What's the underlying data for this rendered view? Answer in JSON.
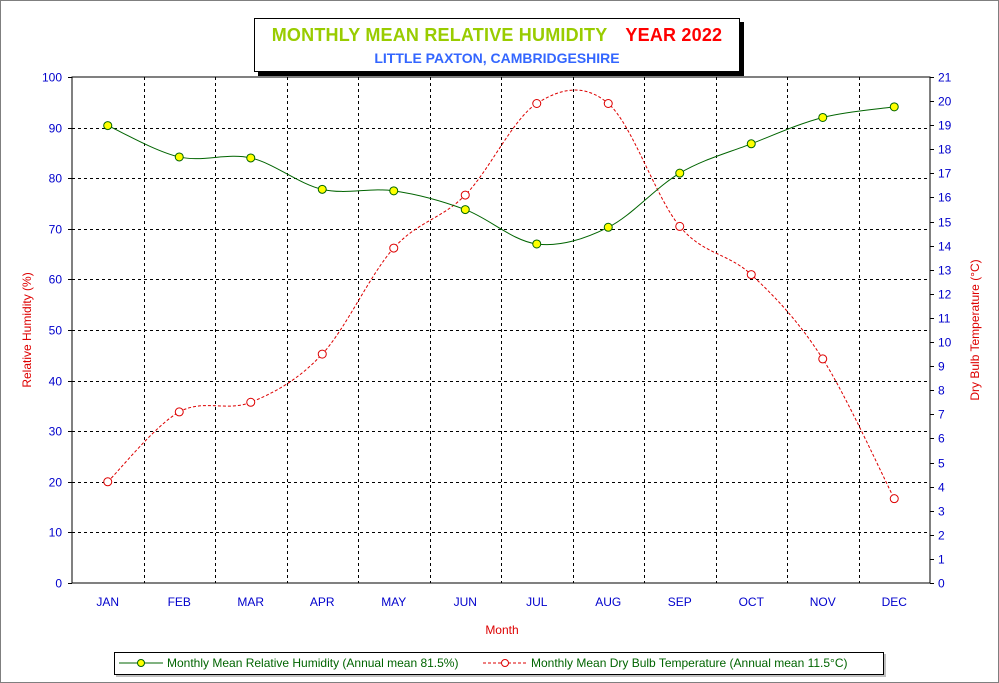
{
  "title": {
    "main": "MONTHLY MEAN RELATIVE HUMIDITY",
    "year": "YEAR 2022",
    "subtitle": "LITTLE PAXTON, CAMBRIDGESHIRE"
  },
  "colors": {
    "rh_line": "#006400",
    "rh_marker": "#ffff00",
    "temp_line": "#dd0000",
    "axis_text": "#0000cc",
    "axis_label": "#dd0000",
    "title_main": "#99cc00",
    "title_year": "#ff0000",
    "subtitle": "#3366ff"
  },
  "legend": {
    "rh": "Monthly Mean Relative Humidity (Annual mean 81.5%)",
    "temp": "Monthly Mean Dry Bulb Temperature (Annual mean 11.5°C)"
  },
  "chart_data": {
    "type": "line",
    "categories": [
      "JAN",
      "FEB",
      "MAR",
      "APR",
      "MAY",
      "JUN",
      "JUL",
      "AUG",
      "SEP",
      "OCT",
      "NOV",
      "DEC"
    ],
    "xlabel": "Month",
    "ylabel": "Relative Humidity (%)",
    "y2label": "Dry Bulb Temperature (°C)",
    "ylim": [
      0,
      100
    ],
    "y2lim": [
      0,
      21
    ],
    "yticks": [
      0,
      10,
      20,
      30,
      40,
      50,
      60,
      70,
      80,
      90,
      100
    ],
    "y2ticks": [
      0,
      1,
      2,
      3,
      4,
      5,
      6,
      7,
      8,
      9,
      10,
      11,
      12,
      13,
      14,
      15,
      16,
      17,
      18,
      19,
      20,
      21
    ],
    "grid": true,
    "legend_position": "bottom",
    "series": [
      {
        "name": "Monthly Mean Relative Humidity (Annual mean 81.5%)",
        "axis": "left",
        "values": [
          90.4,
          84.2,
          84.0,
          77.8,
          77.5,
          73.8,
          67.0,
          70.3,
          81.0,
          86.8,
          92.0,
          94.1
        ]
      },
      {
        "name": "Monthly Mean Dry Bulb Temperature (Annual mean 11.5°C)",
        "axis": "right",
        "values": [
          4.2,
          7.1,
          7.5,
          9.5,
          13.9,
          16.1,
          19.9,
          19.9,
          14.8,
          12.8,
          9.3,
          3.5
        ]
      }
    ]
  }
}
